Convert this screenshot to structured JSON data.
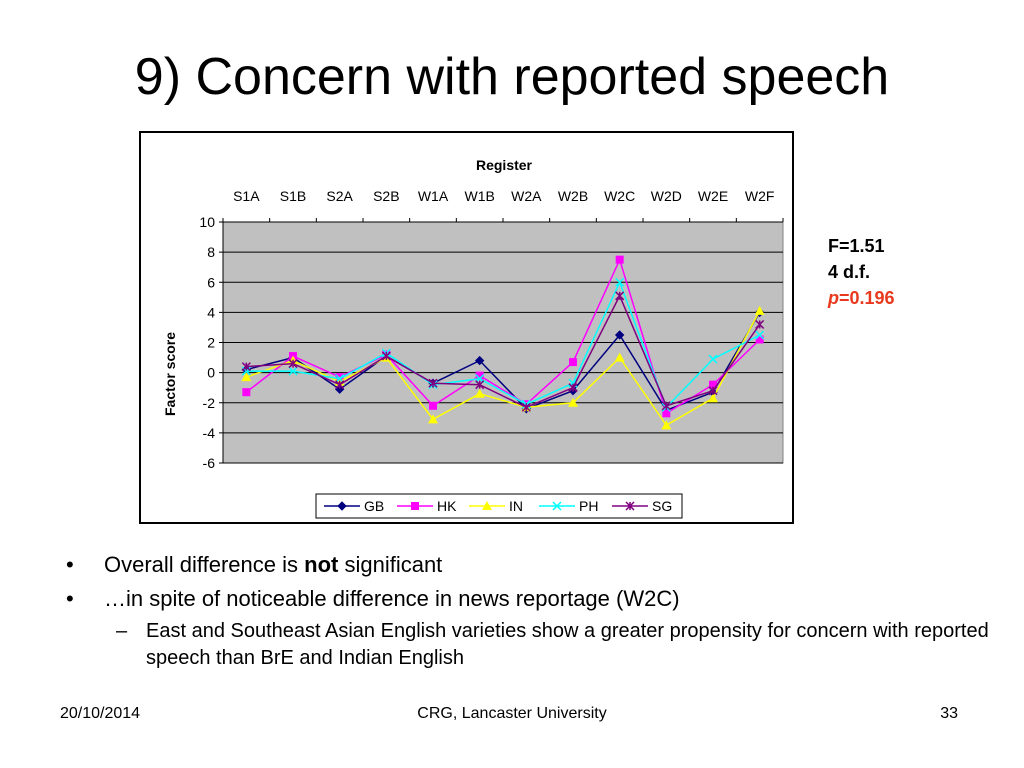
{
  "slide": {
    "title": "9) Concern with reported speech",
    "stats": {
      "f_line": "F=1.51",
      "df_line": "4 d.f.",
      "p_symbol": "p",
      "p_value": "=0.196"
    },
    "bullets": [
      {
        "parts": [
          "Overall difference is ",
          "not",
          " significant"
        ]
      },
      {
        "text": "…in spite of noticeable difference in news reportage (W2C)"
      }
    ],
    "sub_bullet": "East and Southeast Asian English varieties show a greater propensity for concern with reported speech than BrE and Indian English",
    "bullet_glyph": "•",
    "dash_glyph": "–",
    "footer": {
      "date": "20/10/2014",
      "center": "CRG, Lancaster University",
      "page": "33"
    }
  },
  "chart_data": {
    "type": "line",
    "title": "Register",
    "xlabel": "Register",
    "ylabel": "Factor score",
    "categories": [
      "S1A",
      "S1B",
      "S2A",
      "S2B",
      "W1A",
      "W1B",
      "W2A",
      "W2B",
      "W2C",
      "W2D",
      "W2E",
      "W2F"
    ],
    "ylim": [
      -6,
      10
    ],
    "yticks": [
      10,
      8,
      6,
      4,
      2,
      0,
      -2,
      -4,
      -6
    ],
    "x_axis_position": "top",
    "grid": true,
    "plot_background": "#c0c0c0",
    "legend_position": "bottom",
    "series": [
      {
        "name": "GB",
        "color": "#000080",
        "marker": "diamond",
        "values": [
          0.2,
          1.0,
          -1.1,
          1.1,
          -0.7,
          0.8,
          -2.4,
          -1.2,
          2.5,
          -2.5,
          -1.3,
          4.0
        ]
      },
      {
        "name": "HK",
        "color": "#ff00ff",
        "marker": "square",
        "values": [
          -1.3,
          1.1,
          -0.3,
          1.2,
          -2.2,
          -0.2,
          -2.1,
          0.7,
          7.5,
          -2.7,
          -0.8,
          2.2
        ]
      },
      {
        "name": "IN",
        "color": "#ffff00",
        "marker": "triangle",
        "values": [
          -0.3,
          0.8,
          -0.6,
          1.0,
          -3.1,
          -1.4,
          -2.3,
          -2.0,
          1.0,
          -3.5,
          -1.7,
          4.1
        ]
      },
      {
        "name": "PH",
        "color": "#00ffff",
        "marker": "x",
        "values": [
          0.1,
          0.1,
          -0.4,
          1.3,
          -0.8,
          -0.4,
          -2.1,
          -0.7,
          6.0,
          -2.3,
          0.9,
          2.5
        ]
      },
      {
        "name": "SG",
        "color": "#800080",
        "marker": "star",
        "values": [
          0.4,
          0.6,
          -0.8,
          1.1,
          -0.7,
          -0.8,
          -2.3,
          -1.0,
          5.1,
          -2.2,
          -1.2,
          3.2
        ]
      }
    ]
  }
}
